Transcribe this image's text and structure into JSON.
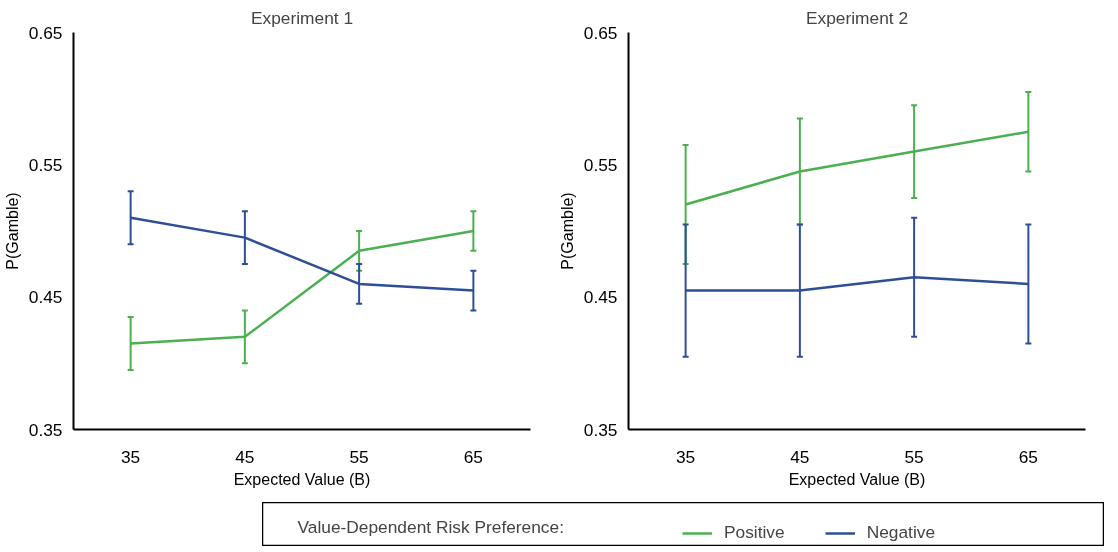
{
  "chart_data": [
    {
      "type": "line",
      "title": "Experiment 1",
      "xlabel": "Expected Value (B)",
      "ylabel": "P(Gamble)",
      "categories": [
        "35",
        "45",
        "55",
        "65"
      ],
      "ylim": [
        0.35,
        0.65
      ],
      "yticks": [
        0.35,
        0.45,
        0.55,
        0.65
      ],
      "grid": false,
      "legend": "bottom",
      "legend_title": "Value-Dependent Risk Preference:",
      "marker": "none",
      "series": [
        {
          "name": "Positive",
          "color": "#4caf50",
          "values": [
            0.415,
            0.42,
            0.485,
            0.5
          ],
          "errors": [
            0.02,
            0.02,
            0.015,
            0.015
          ]
        },
        {
          "name": "Negative",
          "color": "#2e4f96",
          "values": [
            0.51,
            0.495,
            0.46,
            0.455
          ],
          "errors": [
            0.02,
            0.02,
            0.015,
            0.015
          ]
        }
      ]
    },
    {
      "type": "line",
      "title": "Experiment 2",
      "xlabel": "Expected Value (B)",
      "ylabel": "P(Gamble)",
      "categories": [
        "35",
        "45",
        "55",
        "65"
      ],
      "ylim": [
        0.35,
        0.65
      ],
      "yticks": [
        0.35,
        0.45,
        0.55,
        0.65
      ],
      "grid": false,
      "legend": false,
      "marker": "none",
      "series": [
        {
          "color": "#4caf50",
          "values": [
            0.52,
            0.545,
            0.56,
            0.575
          ],
          "errors": [
            0.045,
            0.04,
            0.035,
            0.03
          ]
        },
        {
          "color": "#2e4f96",
          "values": [
            0.455,
            0.455,
            0.465,
            0.46
          ],
          "errors": [
            0.05,
            0.05,
            0.045,
            0.045
          ]
        }
      ]
    }
  ]
}
